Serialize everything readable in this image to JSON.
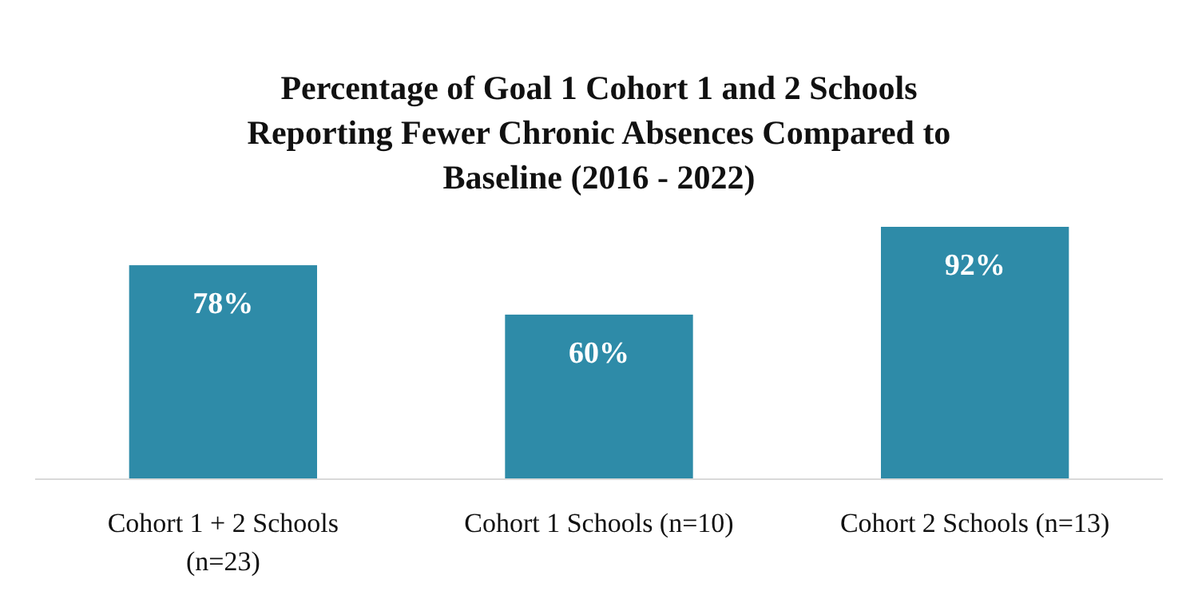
{
  "chart_data": {
    "type": "bar",
    "title": "Percentage of Goal 1 Cohort 1 and 2 Schools Reporting Fewer Chronic Absences Compared to Baseline (2016 - 2022)",
    "categories": [
      "Cohort 1 + 2 Schools (n=23)",
      "Cohort 1 Schools (n=10)",
      "Cohort 2 Schools (n=13)"
    ],
    "values": [
      78,
      60,
      92
    ],
    "value_labels": [
      "78%",
      "60%",
      "92%"
    ],
    "color": "#2e8ba8"
  }
}
